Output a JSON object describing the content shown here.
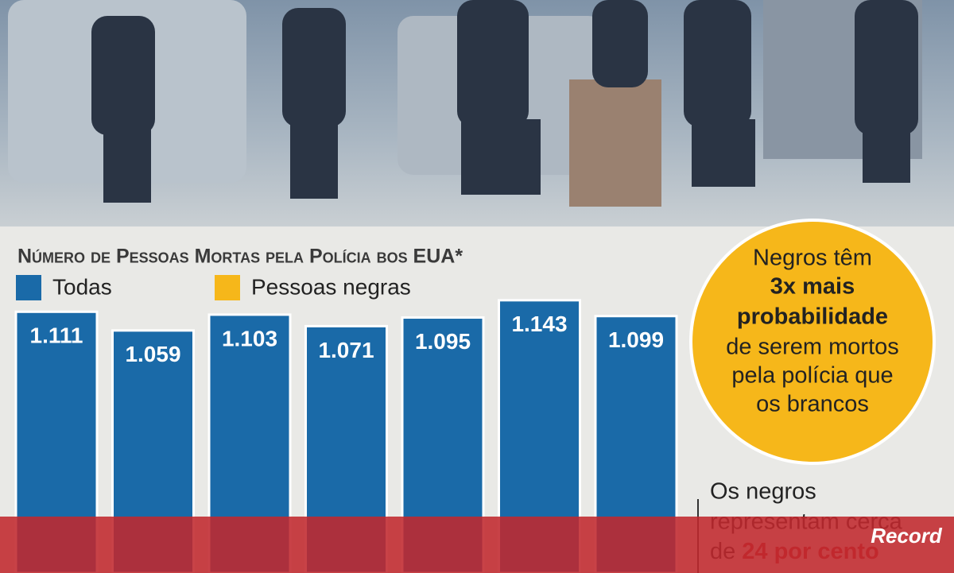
{
  "chart_data": {
    "type": "bar",
    "title": "Número de Pessoas Mortas pela Polícia bos EUA*",
    "categories": [
      null,
      null,
      null,
      null,
      null,
      null,
      null
    ],
    "series": [
      {
        "name": "Todas",
        "color": "#1a6aa8",
        "values": [
          1111,
          1059,
          1103,
          1071,
          1095,
          1143,
          1099
        ],
        "value_labels": [
          "1.111",
          "1.059",
          "1.103",
          "1.071",
          "1.095",
          "1.143",
          "1.099"
        ]
      },
      {
        "name": "Pessoas negras",
        "color": "#f6b71a",
        "values": [
          null,
          null,
          null,
          null,
          null,
          null,
          null
        ]
      }
    ],
    "ylim": [
      385,
      1200
    ]
  },
  "annotations": {
    "circle": [
      "Negros têm",
      "3x mais",
      "probabilidade",
      "de serem mortos",
      "pela polícia que",
      "os brancos"
    ],
    "side": [
      "Os negros",
      "representam cerca",
      "de",
      "24 por cento"
    ]
  },
  "logo": "Record"
}
